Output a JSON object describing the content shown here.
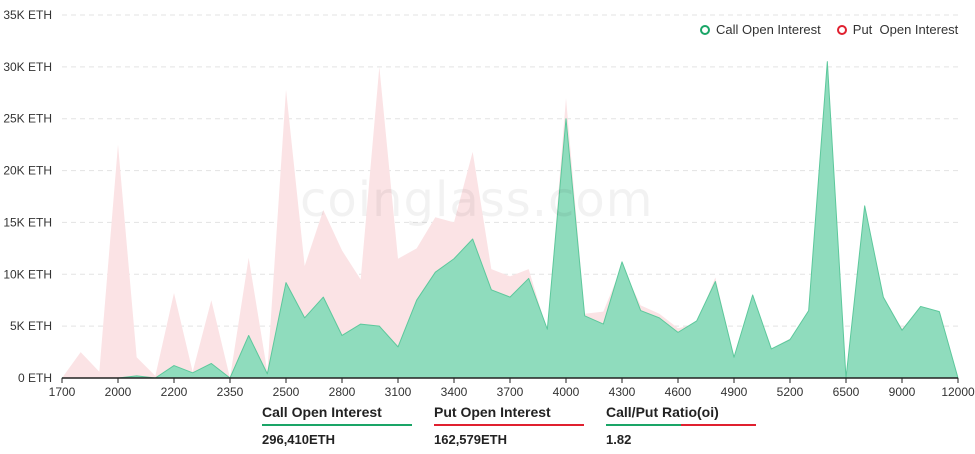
{
  "watermark": "coinglass.com",
  "legend": {
    "call_label": "Call Open Interest",
    "put_label": "Put  Open Interest"
  },
  "colors": {
    "call_fill": "#8fdcbd",
    "call_line": "#5dc89c",
    "put_fill": "#fbe3e5",
    "call_dot": "#1aa567",
    "put_dot": "#e0202f",
    "grid": "#e3e3e3"
  },
  "stats": {
    "call": {
      "label": "Call Open Interest",
      "value": "296,410ETH"
    },
    "put": {
      "label": "Put Open Interest",
      "value": "162,579ETH"
    },
    "ratio": {
      "label": "Call/Put Ratio(oi)",
      "value": "1.82"
    }
  },
  "chart_data": {
    "type": "area",
    "y_ticks": [
      "0 ETH",
      "5K ETH",
      "10K ETH",
      "15K ETH",
      "20K ETH",
      "25K ETH",
      "30K ETH",
      "35K ETH"
    ],
    "ylim": [
      0,
      35000
    ],
    "x_tick_labels": [
      "1700",
      "2000",
      "2200",
      "2350",
      "2500",
      "2800",
      "3100",
      "3400",
      "3700",
      "4000",
      "4300",
      "4600",
      "4900",
      "5200",
      "6500",
      "9000",
      "12000"
    ],
    "x_tick_indices": [
      0,
      3,
      6,
      9,
      12,
      15,
      18,
      21,
      24,
      27,
      30,
      33,
      36,
      39,
      42,
      45,
      48
    ],
    "grid": true,
    "legend_position": "top-right",
    "series": [
      {
        "name": "Call Open Interest",
        "values": [
          0,
          0,
          0,
          0,
          200,
          0,
          1200,
          500,
          1400,
          0,
          4100,
          400,
          9200,
          5800,
          7800,
          4100,
          5200,
          5000,
          3000,
          7500,
          10200,
          11500,
          13400,
          8500,
          7800,
          9600,
          4700,
          25000,
          6000,
          5200,
          11200,
          6500,
          5800,
          4400,
          5500,
          9300,
          2000,
          8000,
          2800,
          3700,
          6500,
          30500,
          0,
          16600,
          7800,
          4600,
          6900,
          6400,
          0
        ]
      },
      {
        "name": "Put  Open Interest",
        "values": [
          0,
          2500,
          600,
          22500,
          2000,
          200,
          8200,
          600,
          7500,
          0,
          11600,
          600,
          27800,
          10800,
          16200,
          12300,
          9500,
          30000,
          11500,
          12500,
          15500,
          15000,
          21800,
          10500,
          9800,
          10500,
          4500,
          27000,
          6200,
          6400,
          10800,
          7000,
          6200,
          4800,
          5200,
          9700,
          2000,
          7500,
          2800,
          3800,
          6000,
          28000,
          0,
          15500,
          7500,
          4800,
          6600,
          6100,
          0
        ]
      }
    ]
  }
}
